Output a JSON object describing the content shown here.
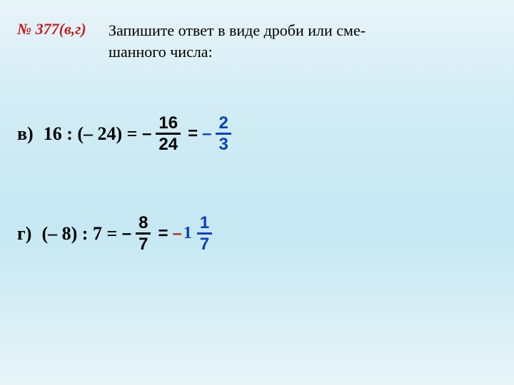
{
  "exercise_number": "№ 377(в,г)",
  "instruction_line1": "Запишите ответ в виде дроби или сме-",
  "instruction_line2": "шанного числа:",
  "problems": {
    "v": {
      "label": "в)",
      "expression": "16 : (– 24) =",
      "step1": {
        "sign": "–",
        "num": "16",
        "den": "24"
      },
      "equals": "=",
      "step2": {
        "sign": "–",
        "num": "2",
        "den": "3"
      }
    },
    "g": {
      "label": "г)",
      "expression": "(– 8) : 7 =",
      "step1": {
        "sign": "–",
        "num": "8",
        "den": "7"
      },
      "equals": "=",
      "step2": {
        "sign": "–",
        "whole": "1",
        "num": "1",
        "den": "7"
      }
    }
  },
  "colors": {
    "background_top": "#e8f4f8",
    "background_mid": "#c5e8f2",
    "exercise_number": "#c41e1e",
    "text": "#000000",
    "answer_blue": "#0a3fbf",
    "answer_red": "#d02222"
  }
}
